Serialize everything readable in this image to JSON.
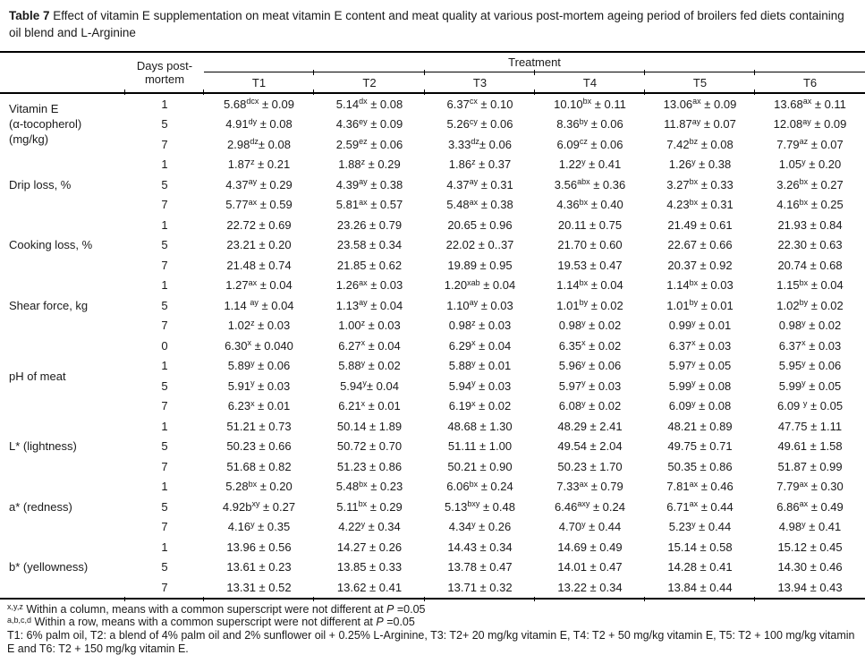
{
  "title": {
    "bold": "Table 7",
    "text": " Effect of vitamin E supplementation on meat vitamin E content and meat quality at various post-mortem ageing period of broilers fed diets containing oil blend and L-Arginine"
  },
  "header": {
    "days_label": "Days post-mortem",
    "treatment_label": "Treatment",
    "treatments": [
      "T1",
      "T2",
      "T3",
      "T4",
      "T5",
      "T6"
    ]
  },
  "groups": [
    {
      "label_lines": [
        "Vitamin E",
        "(α-tocopherol)",
        "(mg/kg)"
      ],
      "rows": [
        {
          "day": "1",
          "cells": [
            "5.68^dcx^ ± 0.09",
            "5.14^dx^ ± 0.08",
            "6.37^cx^ ± 0.10",
            "10.10^bx^ ± 0.11",
            "13.06^ax^ ± 0.09",
            "13.68^ax^ ± 0.11"
          ]
        },
        {
          "day": "5",
          "cells": [
            "4.91^dy^ ± 0.08",
            "4.36^ey^ ± 0.09",
            "5.26^cy^ ± 0.06",
            "8.36^by^ ± 0.06",
            "11.87^ay^ ± 0.07",
            "12.08^ay^ ± 0.09"
          ]
        },
        {
          "day": "7",
          "cells": [
            "2.98^dz^± 0.08",
            "2.59^ez^ ± 0.06",
            "3.33^dz^± 0.06",
            "6.09^cz^ ± 0.06",
            "7.42^bz^ ± 0.08",
            "7.79^az^ ± 0.07"
          ]
        }
      ]
    },
    {
      "label_lines": [
        "Drip loss, %"
      ],
      "rows": [
        {
          "day": "1",
          "cells": [
            "1.87^z^ ± 0.21",
            "1.88^z^ ± 0.29",
            "1.86^z^ ± 0.37",
            "1.22^y^ ± 0.41",
            "1.26^y^ ± 0.38",
            "1.05^y^ ± 0.20"
          ]
        },
        {
          "day": "5",
          "cells": [
            "4.37^ay^ ± 0.29",
            "4.39^ay^ ± 0.38",
            "4.37^ay^ ± 0.31",
            "3.56^abx^ ± 0.36",
            "3.27^bx^ ± 0.33",
            "3.26^bx^ ± 0.27"
          ]
        },
        {
          "day": "7",
          "cells": [
            "5.77^ax^ ± 0.59",
            "5.81^ax^ ± 0.57",
            "5.48^ax^ ± 0.38",
            "4.36^bx^ ± 0.40",
            "4.23^bx^ ± 0.31",
            "4.16^bx^ ± 0.25"
          ]
        }
      ]
    },
    {
      "label_lines": [
        "Cooking loss, %"
      ],
      "rows": [
        {
          "day": "1",
          "cells": [
            "22.72 ± 0.69",
            "23.26 ± 0.79",
            "20.65 ± 0.96",
            "20.11 ± 0.75",
            "21.49 ± 0.61",
            "21.93 ± 0.84"
          ]
        },
        {
          "day": "5",
          "cells": [
            "23.21 ± 0.20",
            "23.58 ± 0.34",
            "22.02 ± 0..37",
            "21.70 ± 0.60",
            "22.67 ± 0.66",
            "22.30 ± 0.63"
          ]
        },
        {
          "day": "7",
          "cells": [
            "21.48 ± 0.74",
            "21.85 ± 0.62",
            "19.89 ± 0.95",
            "19.53 ± 0.47",
            "20.37 ± 0.92",
            "20.74 ± 0.68"
          ]
        }
      ]
    },
    {
      "label_lines": [
        "Shear force, kg"
      ],
      "rows": [
        {
          "day": "1",
          "cells": [
            "1.27^ax^ ± 0.04",
            "1.26^ax^ ± 0.03",
            "1.20^xab^ ± 0.04",
            "1.14^bx^ ± 0.04",
            "1.14^bx^ ± 0.03",
            "1.15^bx^ ± 0.04"
          ]
        },
        {
          "day": "5",
          "cells": [
            "1.14 ^ay^ ± 0.04",
            "1.13^ay^ ± 0.04",
            "1.10^ay^ ± 0.03",
            "1.01^by^ ± 0.02",
            "1.01^by^ ± 0.01",
            "1.02^by^ ± 0.02"
          ]
        },
        {
          "day": "7",
          "cells": [
            "1.02^z^ ± 0.03",
            "1.00^z^ ± 0.03",
            "0.98^z^ ± 0.03",
            "0.98^y^ ± 0.02",
            "0.99^y^ ± 0.01",
            "0.98^y^ ± 0.02"
          ]
        }
      ]
    },
    {
      "label_lines": [
        "pH of meat"
      ],
      "rows": [
        {
          "day": "0",
          "cells": [
            "6.30^x^ ± 0.040",
            "6.27^x^ ± 0.04",
            "6.29^x^ ± 0.04",
            "6.35^x^ ± 0.02",
            "6.37^x^ ± 0.03",
            "6.37^x^ ± 0.03"
          ]
        },
        {
          "day": "1",
          "cells": [
            "5.89^y^ ± 0.06",
            "5.88^y^ ± 0.02",
            "5.88^y^ ± 0.01",
            "5.96^y^ ± 0.06",
            "5.97^y^ ± 0.05",
            "5.95^y^ ± 0.06"
          ]
        },
        {
          "day": "5",
          "cells": [
            "5.91^y^ ± 0.03",
            "5.94^y^± 0.04",
            "5.94^y^ ± 0.03",
            "5.97^y^ ± 0.03",
            "5.99^y^ ± 0.08",
            "5.99^y^ ± 0.05"
          ]
        },
        {
          "day": "7",
          "cells": [
            "6.23^x^ ± 0.01",
            "6.21^x^ ± 0.01",
            "6.19^x^ ± 0.02",
            "6.08^y^ ± 0.02",
            "6.09^y^ ± 0.08",
            "6.09 ^y^ ± 0.05"
          ]
        }
      ]
    },
    {
      "label_lines": [
        "L* (lightness)"
      ],
      "rows": [
        {
          "day": "1",
          "cells": [
            "51.21 ± 0.73",
            "50.14 ± 1.89",
            "48.68 ± 1.30",
            "48.29 ± 2.41",
            "48.21 ± 0.89",
            "47.75 ± 1.11"
          ]
        },
        {
          "day": "5",
          "cells": [
            "50.23 ± 0.66",
            "50.72 ± 0.70",
            "51.11 ± 1.00",
            "49.54 ± 2.04",
            "49.75 ± 0.71",
            "49.61 ± 1.58"
          ]
        },
        {
          "day": "7",
          "cells": [
            "51.68 ± 0.82",
            "51.23 ± 0.86",
            "50.21 ± 0.90",
            "50.23 ± 1.70",
            "50.35 ± 0.86",
            "51.87 ± 0.99"
          ]
        }
      ]
    },
    {
      "label_lines": [
        "a* (redness)"
      ],
      "rows": [
        {
          "day": "1",
          "cells": [
            "5.28^bx^ ± 0.20",
            "5.48^bx^ ± 0.23",
            "6.06^bx^ ± 0.24",
            "7.33^ax^ ± 0.79",
            "7.81^ax^ ± 0.46",
            "7.79^ax^ ± 0.30"
          ]
        },
        {
          "day": "5",
          "cells": [
            "4.92b^xy^ ± 0.27",
            "5.11^bx^ ± 0.29",
            "5.13^bxy^ ± 0.48",
            "6.46^axy^ ± 0.24",
            "6.71^ax^ ± 0.44",
            "6.86^ax^ ± 0.49"
          ]
        },
        {
          "day": "7",
          "cells": [
            "4.16^y^ ± 0.35",
            "4.22^y^ ± 0.34",
            "4.34^y^ ± 0.26",
            "4.70^y^ ± 0.44",
            "5.23^y^ ± 0.44",
            "4.98^y^ ± 0.41"
          ]
        }
      ]
    },
    {
      "label_lines": [
        "b* (yellowness)"
      ],
      "rows": [
        {
          "day": "1",
          "cells": [
            "13.96 ± 0.56",
            "14.27 ± 0.26",
            "14.43 ± 0.34",
            "14.69 ± 0.49",
            "15.14 ± 0.58",
            "15.12 ± 0.45"
          ]
        },
        {
          "day": "5",
          "cells": [
            "13.61 ± 0.23",
            "13.85 ± 0.33",
            "13.78 ± 0.47",
            "14.01 ± 0.47",
            "14.28 ± 0.41",
            "14.30 ± 0.46"
          ]
        },
        {
          "day": "7",
          "cells": [
            "13.31 ± 0.52",
            "13.62 ± 0.41",
            "13.71 ± 0.32",
            "13.22 ± 0.34",
            "13.84 ± 0.44",
            "13.94 ± 0.43"
          ]
        }
      ]
    }
  ],
  "footnotes": [
    "^x,y,z^ Within a column, means with a common superscript were not different at *P* =0.05",
    "^a,b,c,d^ Within a row, means with a common superscript were not different at *P* =0.05",
    "T1: 6% palm oil, T2: a blend of 4% palm oil and 2% sunflower oil + 0.25% L-Arginine, T3: T2+ 20 mg/kg vitamin E, T4: T2 + 50 mg/kg vitamin E, T5: T2 + 100 mg/kg vitamin E and T6: T2 + 150 mg/kg vitamin E."
  ],
  "colors": {
    "text": "#1a1a1a",
    "rule": "#000000",
    "background": "#ffffff"
  }
}
